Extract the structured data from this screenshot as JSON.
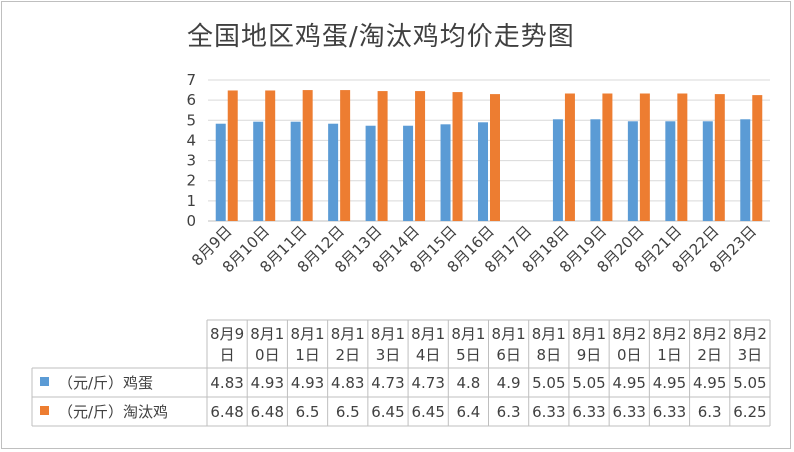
{
  "chart_data": {
    "type": "bar",
    "title": "全国地区鸡蛋/淘汰鸡均价走势图",
    "categories": [
      "8月9日",
      "8月10日",
      "8月11日",
      "8月12日",
      "8月13日",
      "8月14日",
      "8月15日",
      "8月16日",
      "8月17日",
      "8月18日",
      "8月19日",
      "8月20日",
      "8月21日",
      "8月22日",
      "8月23日"
    ],
    "table_headers": [
      [
        "8月9",
        "日"
      ],
      [
        "8月1",
        "0日"
      ],
      [
        "8月1",
        "1日"
      ],
      [
        "8月1",
        "2日"
      ],
      [
        "8月1",
        "3日"
      ],
      [
        "8月1",
        "4日"
      ],
      [
        "8月1",
        "5日"
      ],
      [
        "8月1",
        "6日"
      ],
      [
        "8月1",
        "8日"
      ],
      [
        "8月1",
        "9日"
      ],
      [
        "8月2",
        "0日"
      ],
      [
        "8月2",
        "1日"
      ],
      [
        "8月2",
        "2日"
      ],
      [
        "8月2",
        "3日"
      ]
    ],
    "series": [
      {
        "name": "（元/斤）鸡蛋",
        "color": "#5b9bd5",
        "values": [
          4.83,
          4.93,
          4.93,
          4.83,
          4.73,
          4.73,
          4.8,
          4.9,
          null,
          5.05,
          5.05,
          4.95,
          4.95,
          4.95,
          5.05
        ],
        "table_values": [
          "4.83",
          "4.93",
          "4.93",
          "4.83",
          "4.73",
          "4.73",
          "4.8",
          "4.9",
          "5.05",
          "5.05",
          "4.95",
          "4.95",
          "4.95",
          "5.05"
        ]
      },
      {
        "name": "（元/斤）淘汰鸡",
        "color": "#ed7d31",
        "values": [
          6.48,
          6.48,
          6.5,
          6.5,
          6.45,
          6.45,
          6.4,
          6.3,
          null,
          6.33,
          6.33,
          6.33,
          6.33,
          6.3,
          6.25
        ],
        "table_values": [
          "6.48",
          "6.48",
          "6.5",
          "6.5",
          "6.45",
          "6.45",
          "6.4",
          "6.3",
          "6.33",
          "6.33",
          "6.33",
          "6.33",
          "6.3",
          "6.25"
        ]
      }
    ],
    "yticks": [
      "0",
      "1",
      "2",
      "3",
      "4",
      "5",
      "6",
      "7"
    ],
    "ylim": [
      0,
      7
    ],
    "grid": true,
    "legend": "data-table"
  }
}
